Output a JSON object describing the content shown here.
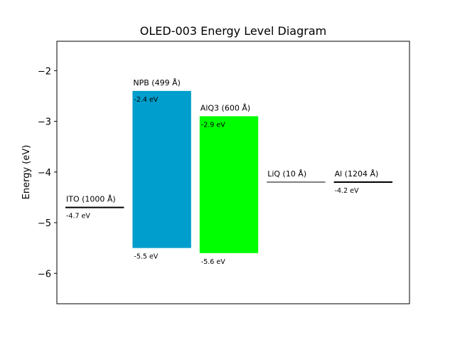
{
  "chart_data": {
    "type": "bar",
    "title": "OLED-003 Energy Level Diagram",
    "xlabel": "",
    "ylabel": "Energy (eV)",
    "ylim": [
      -6.6,
      -1.42
    ],
    "yticks": [
      -2,
      -3,
      -4,
      -5,
      -6
    ],
    "ytick_labels": [
      "−2",
      "−3",
      "−4",
      "−5",
      "−6"
    ],
    "grid": false,
    "layers": [
      {
        "name": "ITO (1000 Å)",
        "kind": "level",
        "value": -4.7,
        "value_label": "-4.7 eV",
        "color": "#000000"
      },
      {
        "name": "NPB (499 Å)",
        "kind": "band",
        "lumo": -2.4,
        "homo": -5.5,
        "lumo_label": "-2.4 eV",
        "homo_label": "-5.5 eV",
        "color": "#009ecc"
      },
      {
        "name": "AlQ3 (600 Å)",
        "kind": "band",
        "lumo": -2.9,
        "homo": -5.6,
        "lumo_label": "-2.9 eV",
        "homo_label": "-5.6 eV",
        "color": "#00ff00"
      },
      {
        "name": "LiQ (10 Å)",
        "kind": "level",
        "value": -4.2,
        "value_label": "",
        "color": "#808080"
      },
      {
        "name": "Al (1204 Å)",
        "kind": "level",
        "value": -4.2,
        "value_label": "-4.2 eV",
        "color": "#000000"
      }
    ]
  }
}
